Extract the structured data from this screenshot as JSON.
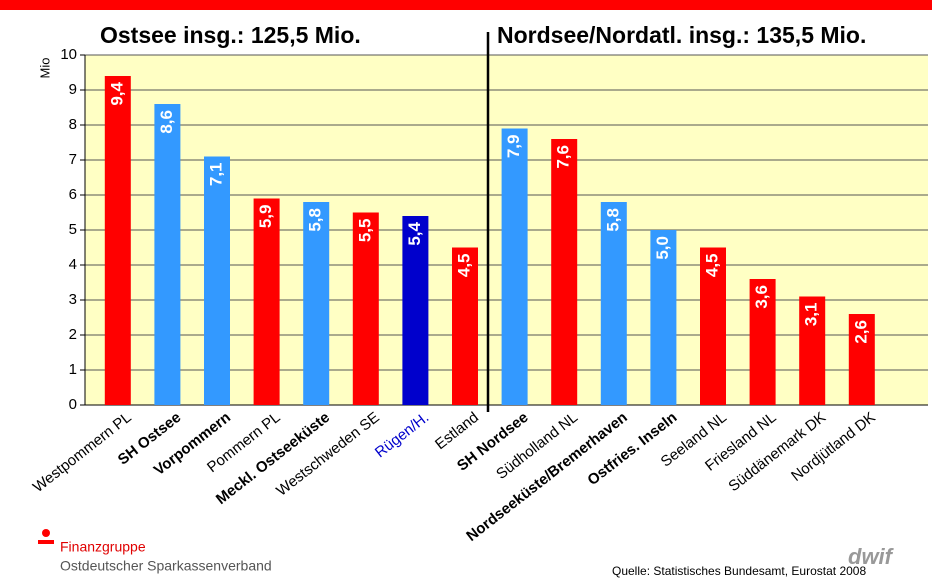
{
  "chart_data": {
    "type": "bar",
    "section_titles": [
      "Ostsee insg.: 125,5 Mio.",
      "Nordsee/Nordatl. insg.: 135,5 Mio."
    ],
    "y_label": "Mio",
    "categories": [
      "Westpommern PL",
      "SH Ostsee",
      "Vorpommern",
      "Pommern PL",
      "Meckl. Ostseeküste",
      "Westschweden SE",
      "Rügen/H.",
      "Estland",
      "SH Nordsee",
      "Südholland NL",
      "Nordseeküste/Bremerhaven",
      "Ostfries. Inseln",
      "Seeland NL",
      "Friesland NL",
      "Süddänemark DK",
      "Nordjütland DK"
    ],
    "values": [
      9.4,
      8.6,
      7.1,
      5.9,
      5.8,
      5.5,
      5.4,
      4.5,
      7.9,
      7.6,
      5.8,
      5.0,
      4.5,
      3.6,
      3.1,
      2.6
    ],
    "value_labels": [
      "9,4",
      "8,6",
      "7,1",
      "5,9",
      "5,8",
      "5,5",
      "5,4",
      "4,5",
      "7,9",
      "7,6",
      "5,8",
      "5,0",
      "4,5",
      "3,6",
      "3,1",
      "2,6"
    ],
    "colors": [
      "#ff0000",
      "#3399ff",
      "#3399ff",
      "#ff0000",
      "#3399ff",
      "#ff0000",
      "#0000cc",
      "#ff0000",
      "#3399ff",
      "#ff0000",
      "#3399ff",
      "#3399ff",
      "#ff0000",
      "#ff0000",
      "#ff0000",
      "#ff0000"
    ],
    "ylim": [
      0,
      10
    ],
    "yticks": [
      0,
      1,
      2,
      3,
      4,
      5,
      6,
      7,
      8,
      9,
      10
    ],
    "grid": true,
    "footer": {
      "brand": "Finanzgruppe",
      "org": "Ostdeutscher Sparkassenverband",
      "source": "Quelle: Statistisches Bundesamt, Eurostat 2008",
      "logo": "dwif"
    }
  }
}
